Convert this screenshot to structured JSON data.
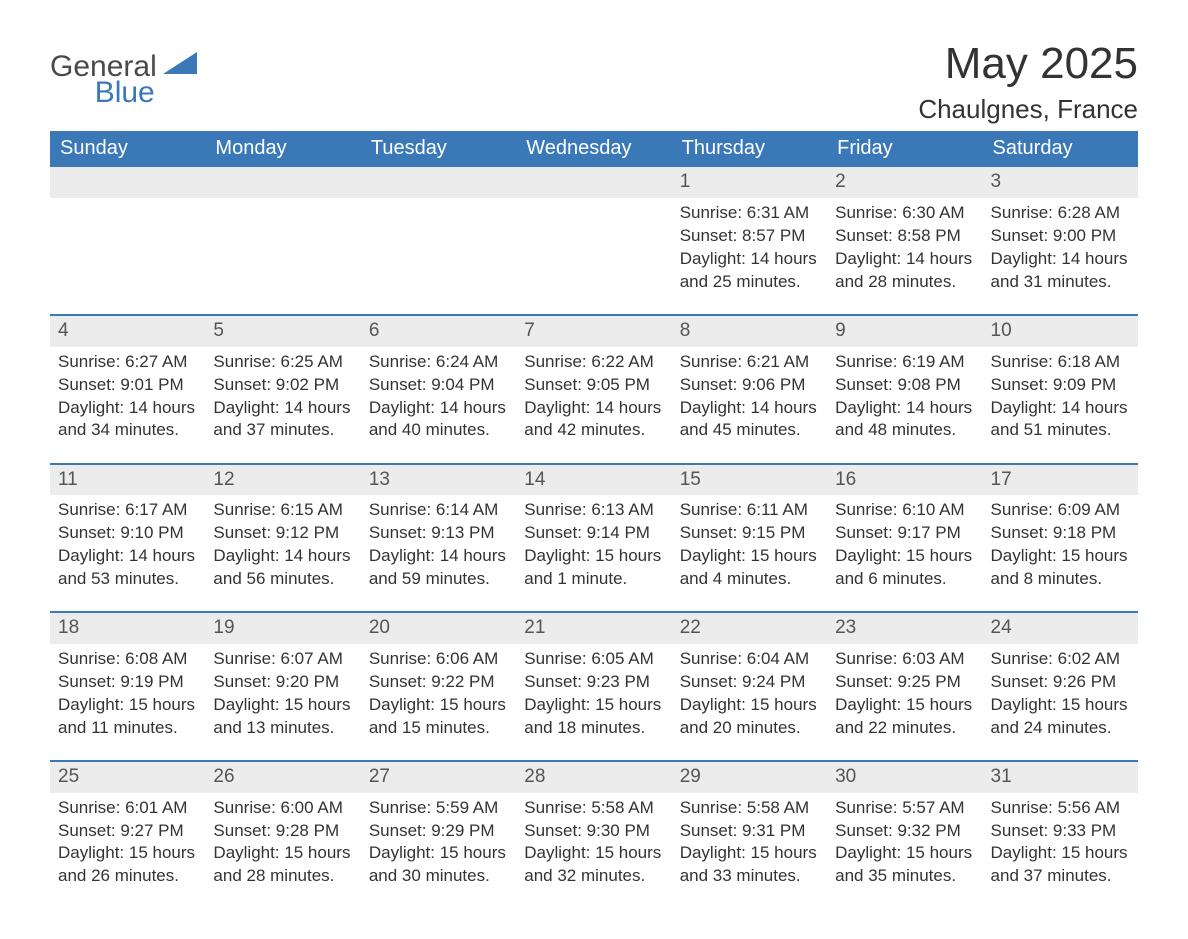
{
  "brand": {
    "line1": "General",
    "line2": "Blue"
  },
  "title": "May 2025",
  "location": "Chaulgnes, France",
  "colors": {
    "header_bg": "#3a78b8",
    "header_text": "#ffffff",
    "daynum_bg": "#ececec",
    "border": "#3a78b8",
    "text": "#333333"
  },
  "weekday_headers": [
    "Sunday",
    "Monday",
    "Tuesday",
    "Wednesday",
    "Thursday",
    "Friday",
    "Saturday"
  ],
  "weeks": [
    [
      {
        "empty": true
      },
      {
        "empty": true
      },
      {
        "empty": true
      },
      {
        "empty": true
      },
      {
        "day": "1",
        "sunrise": "Sunrise: 6:31 AM",
        "sunset": "Sunset: 8:57 PM",
        "daylight": "Daylight: 14 hours and 25 minutes."
      },
      {
        "day": "2",
        "sunrise": "Sunrise: 6:30 AM",
        "sunset": "Sunset: 8:58 PM",
        "daylight": "Daylight: 14 hours and 28 minutes."
      },
      {
        "day": "3",
        "sunrise": "Sunrise: 6:28 AM",
        "sunset": "Sunset: 9:00 PM",
        "daylight": "Daylight: 14 hours and 31 minutes."
      }
    ],
    [
      {
        "day": "4",
        "sunrise": "Sunrise: 6:27 AM",
        "sunset": "Sunset: 9:01 PM",
        "daylight": "Daylight: 14 hours and 34 minutes."
      },
      {
        "day": "5",
        "sunrise": "Sunrise: 6:25 AM",
        "sunset": "Sunset: 9:02 PM",
        "daylight": "Daylight: 14 hours and 37 minutes."
      },
      {
        "day": "6",
        "sunrise": "Sunrise: 6:24 AM",
        "sunset": "Sunset: 9:04 PM",
        "daylight": "Daylight: 14 hours and 40 minutes."
      },
      {
        "day": "7",
        "sunrise": "Sunrise: 6:22 AM",
        "sunset": "Sunset: 9:05 PM",
        "daylight": "Daylight: 14 hours and 42 minutes."
      },
      {
        "day": "8",
        "sunrise": "Sunrise: 6:21 AM",
        "sunset": "Sunset: 9:06 PM",
        "daylight": "Daylight: 14 hours and 45 minutes."
      },
      {
        "day": "9",
        "sunrise": "Sunrise: 6:19 AM",
        "sunset": "Sunset: 9:08 PM",
        "daylight": "Daylight: 14 hours and 48 minutes."
      },
      {
        "day": "10",
        "sunrise": "Sunrise: 6:18 AM",
        "sunset": "Sunset: 9:09 PM",
        "daylight": "Daylight: 14 hours and 51 minutes."
      }
    ],
    [
      {
        "day": "11",
        "sunrise": "Sunrise: 6:17 AM",
        "sunset": "Sunset: 9:10 PM",
        "daylight": "Daylight: 14 hours and 53 minutes."
      },
      {
        "day": "12",
        "sunrise": "Sunrise: 6:15 AM",
        "sunset": "Sunset: 9:12 PM",
        "daylight": "Daylight: 14 hours and 56 minutes."
      },
      {
        "day": "13",
        "sunrise": "Sunrise: 6:14 AM",
        "sunset": "Sunset: 9:13 PM",
        "daylight": "Daylight: 14 hours and 59 minutes."
      },
      {
        "day": "14",
        "sunrise": "Sunrise: 6:13 AM",
        "sunset": "Sunset: 9:14 PM",
        "daylight": "Daylight: 15 hours and 1 minute."
      },
      {
        "day": "15",
        "sunrise": "Sunrise: 6:11 AM",
        "sunset": "Sunset: 9:15 PM",
        "daylight": "Daylight: 15 hours and 4 minutes."
      },
      {
        "day": "16",
        "sunrise": "Sunrise: 6:10 AM",
        "sunset": "Sunset: 9:17 PM",
        "daylight": "Daylight: 15 hours and 6 minutes."
      },
      {
        "day": "17",
        "sunrise": "Sunrise: 6:09 AM",
        "sunset": "Sunset: 9:18 PM",
        "daylight": "Daylight: 15 hours and 8 minutes."
      }
    ],
    [
      {
        "day": "18",
        "sunrise": "Sunrise: 6:08 AM",
        "sunset": "Sunset: 9:19 PM",
        "daylight": "Daylight: 15 hours and 11 minutes."
      },
      {
        "day": "19",
        "sunrise": "Sunrise: 6:07 AM",
        "sunset": "Sunset: 9:20 PM",
        "daylight": "Daylight: 15 hours and 13 minutes."
      },
      {
        "day": "20",
        "sunrise": "Sunrise: 6:06 AM",
        "sunset": "Sunset: 9:22 PM",
        "daylight": "Daylight: 15 hours and 15 minutes."
      },
      {
        "day": "21",
        "sunrise": "Sunrise: 6:05 AM",
        "sunset": "Sunset: 9:23 PM",
        "daylight": "Daylight: 15 hours and 18 minutes."
      },
      {
        "day": "22",
        "sunrise": "Sunrise: 6:04 AM",
        "sunset": "Sunset: 9:24 PM",
        "daylight": "Daylight: 15 hours and 20 minutes."
      },
      {
        "day": "23",
        "sunrise": "Sunrise: 6:03 AM",
        "sunset": "Sunset: 9:25 PM",
        "daylight": "Daylight: 15 hours and 22 minutes."
      },
      {
        "day": "24",
        "sunrise": "Sunrise: 6:02 AM",
        "sunset": "Sunset: 9:26 PM",
        "daylight": "Daylight: 15 hours and 24 minutes."
      }
    ],
    [
      {
        "day": "25",
        "sunrise": "Sunrise: 6:01 AM",
        "sunset": "Sunset: 9:27 PM",
        "daylight": "Daylight: 15 hours and 26 minutes."
      },
      {
        "day": "26",
        "sunrise": "Sunrise: 6:00 AM",
        "sunset": "Sunset: 9:28 PM",
        "daylight": "Daylight: 15 hours and 28 minutes."
      },
      {
        "day": "27",
        "sunrise": "Sunrise: 5:59 AM",
        "sunset": "Sunset: 9:29 PM",
        "daylight": "Daylight: 15 hours and 30 minutes."
      },
      {
        "day": "28",
        "sunrise": "Sunrise: 5:58 AM",
        "sunset": "Sunset: 9:30 PM",
        "daylight": "Daylight: 15 hours and 32 minutes."
      },
      {
        "day": "29",
        "sunrise": "Sunrise: 5:58 AM",
        "sunset": "Sunset: 9:31 PM",
        "daylight": "Daylight: 15 hours and 33 minutes."
      },
      {
        "day": "30",
        "sunrise": "Sunrise: 5:57 AM",
        "sunset": "Sunset: 9:32 PM",
        "daylight": "Daylight: 15 hours and 35 minutes."
      },
      {
        "day": "31",
        "sunrise": "Sunrise: 5:56 AM",
        "sunset": "Sunset: 9:33 PM",
        "daylight": "Daylight: 15 hours and 37 minutes."
      }
    ]
  ]
}
